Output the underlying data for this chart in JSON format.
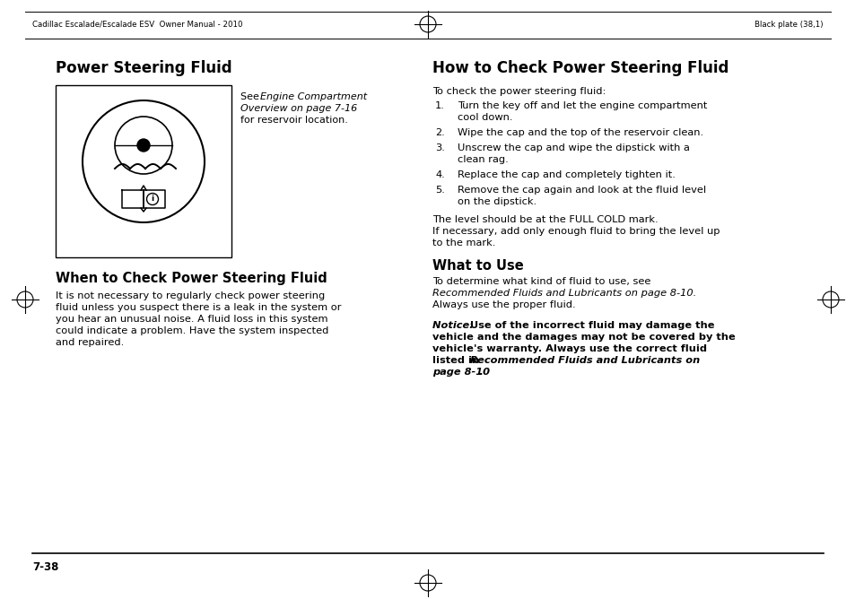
{
  "bg_color": "#ffffff",
  "header_left": "Cadillac Escalade/Escalade ESV  Owner Manual - 2010",
  "header_right": "Black plate (38,1)",
  "footer_page": "7-38",
  "title_left": "Power Steering Fluid",
  "title_right": "How to Check Power Steering Fluid",
  "caption_see": "See ",
  "caption_italic": "Engine Compartment\nOverview on page 7-16",
  "caption_plain": "for reservoir location.",
  "section2_title": "When to Check Power Steering Fluid",
  "section2_body": [
    "It is not necessary to regularly check power steering",
    "fluid unless you suspect there is a leak in the system or",
    "you hear an unusual noise. A fluid loss in this system",
    "could indicate a problem. Have the system inspected",
    "and repaired."
  ],
  "right_intro": "To check the power steering fluid:",
  "steps": [
    [
      "Turn the key off and let the engine compartment",
      "cool down."
    ],
    [
      "Wipe the cap and the top of the reservoir clean."
    ],
    [
      "Unscrew the cap and wipe the dipstick with a",
      "clean rag."
    ],
    [
      "Replace the cap and completely tighten it."
    ],
    [
      "Remove the cap again and look at the fluid level",
      "on the dipstick."
    ]
  ],
  "right_para1": [
    "The level should be at the FULL COLD mark.",
    "If necessary, add only enough fluid to bring the level up",
    "to the mark."
  ],
  "section3_title": "What to Use",
  "section3_body_line1": "To determine what kind of fluid to use, see",
  "section3_body_line2": "Recommended Fluids and Lubricants on page 8-10.",
  "section3_body_line3": "Always use the proper fluid.",
  "notice_line1_bold": "Notice: ",
  "notice_line1_rest": " Use of the incorrect fluid may damage the",
  "notice_line2": "vehicle and the damages may not be covered by the",
  "notice_line3": "vehicle's warranty. Always use the correct fluid",
  "notice_line4_plain": "listed in ",
  "notice_line4_italic": "Recommended Fluids and Lubricants on",
  "notice_line5_italic": "page 8-10",
  "notice_line5_end": ".",
  "text_color": "#000000"
}
